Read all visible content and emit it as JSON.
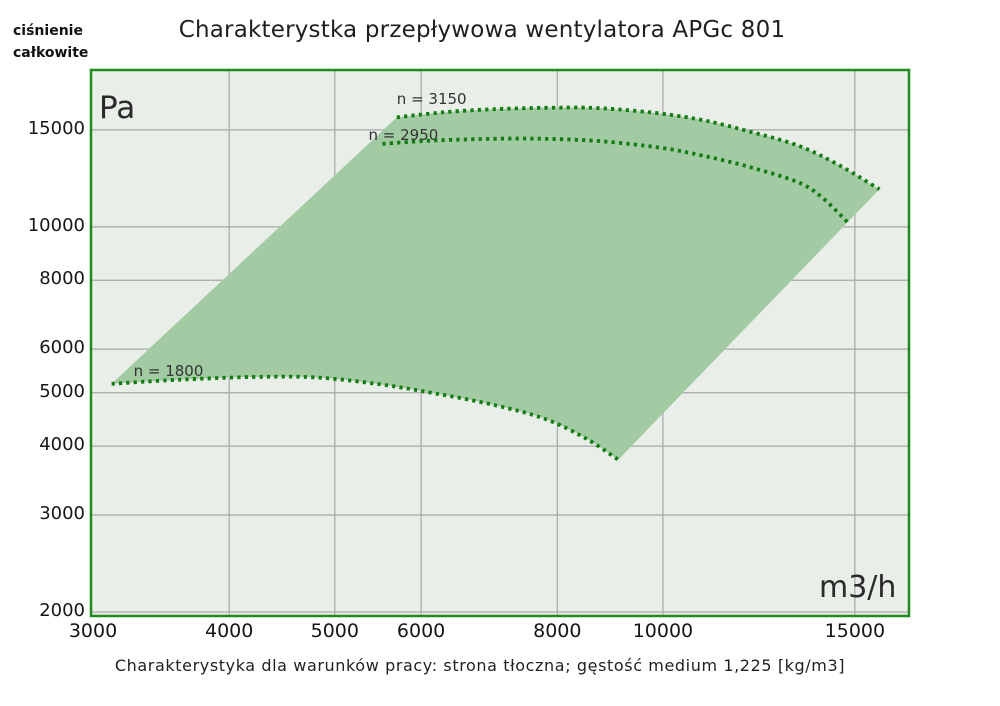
{
  "page": {
    "title": "Charakterystka przepływowa wentylatora APGc 801",
    "caption": "Charakterystyka dla warunków pracy: strona tłoczna; gęstość medium 1,225 [kg/m3]"
  },
  "axis_headers": {
    "y_line1": "ciśnienie",
    "y_line2": "całkowite",
    "y_unit": "Pa",
    "x_unit": "m3/h"
  },
  "colors": {
    "plot_background": "#e9eee9",
    "envelope_fill": "#a3cba3",
    "curve_green": "#127c12",
    "border_green": "#1f8b1f",
    "gridline_gray": "#a8a8a8",
    "text": "#1f1f1f"
  },
  "chart_data": {
    "type": "area",
    "title": "Charakterystka przepływowa wentylatora APGc 801",
    "subtitle": "Charakterystyka dla warunków pracy: strona tłoczna; gęstość medium 1,225 [kg/m3]",
    "xlabel": "m3/h",
    "ylabel": "Pa",
    "x_axis": {
      "scale": "log",
      "ticks": [
        3000,
        4000,
        5000,
        6000,
        8000,
        10000,
        15000
      ],
      "range": [
        3000,
        16800
      ],
      "grid": true
    },
    "y_axis": {
      "scale": "log",
      "ticks": [
        2000,
        3000,
        4000,
        5000,
        6000,
        8000,
        10000,
        15000
      ],
      "range": [
        2000,
        19250
      ],
      "grid": true
    },
    "series": [
      {
        "name": "n = 3150",
        "style": "dotted",
        "points": [
          [
            5700,
            15800
          ],
          [
            6300,
            16150
          ],
          [
            7000,
            16350
          ],
          [
            7800,
            16450
          ],
          [
            8600,
            16450
          ],
          [
            9400,
            16250
          ],
          [
            10200,
            15950
          ],
          [
            11000,
            15550
          ],
          [
            12000,
            14900
          ],
          [
            13300,
            14050
          ],
          [
            14500,
            12950
          ],
          [
            15800,
            11700
          ]
        ]
      },
      {
        "name": "n = 2950",
        "style": "dotted",
        "points": [
          [
            5530,
            14150
          ],
          [
            6200,
            14350
          ],
          [
            7000,
            14450
          ],
          [
            7800,
            14450
          ],
          [
            8800,
            14300
          ],
          [
            10000,
            13900
          ],
          [
            10900,
            13450
          ],
          [
            12000,
            12850
          ],
          [
            13300,
            12050
          ],
          [
            14000,
            11300
          ],
          [
            14840,
            10100
          ]
        ]
      },
      {
        "name": "n = 1800",
        "style": "dotted",
        "points": [
          [
            3120,
            5190
          ],
          [
            3600,
            5280
          ],
          [
            4200,
            5340
          ],
          [
            4800,
            5330
          ],
          [
            5500,
            5180
          ],
          [
            6200,
            4980
          ],
          [
            7000,
            4750
          ],
          [
            7800,
            4480
          ],
          [
            8500,
            4130
          ],
          [
            9100,
            3780
          ]
        ]
      }
    ],
    "envelope": {
      "description": "shaded operating range filled between curve n = 3150 (top) and curve n = 1800 (bottom)",
      "left_edge": "straight line from start of n = 1800 [3120,5190] to start of n = 3150 [5700,15800]",
      "right_edge": "straight line from end of n = 3150 [15800,11700] to end of n = 1800 [9100,3780]"
    },
    "legend_position": "labels beside curves"
  }
}
